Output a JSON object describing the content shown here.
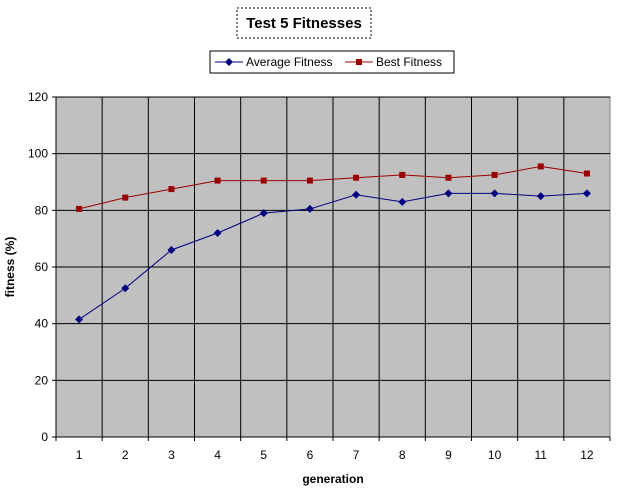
{
  "chart_data": {
    "type": "line",
    "title": "Test 5 Fitnesses",
    "xlabel": "generation",
    "ylabel": "fitness (%)",
    "x": [
      1,
      2,
      3,
      4,
      5,
      6,
      7,
      8,
      9,
      10,
      11,
      12
    ],
    "ylim": [
      0,
      120
    ],
    "yticks": [
      0,
      20,
      40,
      60,
      80,
      100,
      120
    ],
    "grid": true,
    "legend_position": "top",
    "background": "#c0c0c0",
    "series": [
      {
        "name": "Average Fitness",
        "color": "#000080",
        "marker": "diamond",
        "values": [
          41.5,
          52.5,
          66,
          72,
          79,
          80.5,
          85.5,
          83,
          86,
          86,
          85,
          86
        ]
      },
      {
        "name": "Best Fitness",
        "color": "#990000",
        "marker": "square",
        "values": [
          80.5,
          84.5,
          87.5,
          90.5,
          90.5,
          90.5,
          91.5,
          92.5,
          91.5,
          92.5,
          95.5,
          93
        ]
      }
    ]
  }
}
